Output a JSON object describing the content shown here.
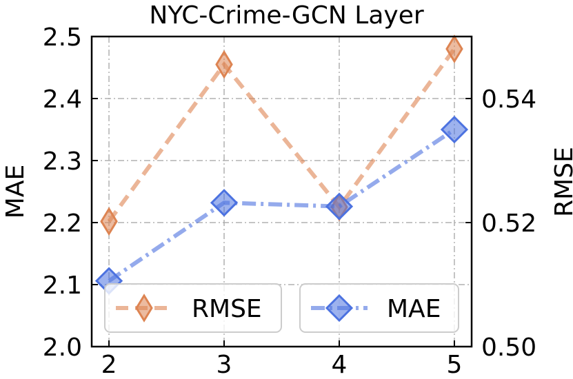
{
  "chart_data": {
    "type": "line",
    "title": "NYC-Crime-GCN Layer",
    "xlabel": "",
    "ylabel_left": "MAE",
    "ylabel_right": "RMSE",
    "x": [
      2,
      3,
      4,
      5
    ],
    "x_ticks": [
      "2",
      "3",
      "4",
      "5"
    ],
    "xlim": [
      1.85,
      5.15
    ],
    "ylim_left": [
      2.0,
      2.5
    ],
    "y_ticks_left": [
      "2.0",
      "2.1",
      "2.2",
      "2.3",
      "2.4",
      "2.5"
    ],
    "ylim_right": [
      0.5,
      0.55
    ],
    "y_ticks_right": [
      "0.50",
      "0.52",
      "0.54"
    ],
    "grid": true,
    "series": [
      {
        "name": "RMSE",
        "axis": "right",
        "values": [
          0.5202,
          0.5455,
          0.5225,
          0.548
        ],
        "color": "#dd8452",
        "linestyle": "dashed",
        "marker": "thin-diamond"
      },
      {
        "name": "MAE",
        "axis": "left",
        "values": [
          2.106,
          2.232,
          2.226,
          2.35
        ],
        "color": "#4c72e0",
        "linestyle": "dash-dot",
        "marker": "diamond"
      }
    ],
    "legend": {
      "placement": "bottom",
      "entries": [
        "RMSE",
        "MAE"
      ]
    }
  }
}
